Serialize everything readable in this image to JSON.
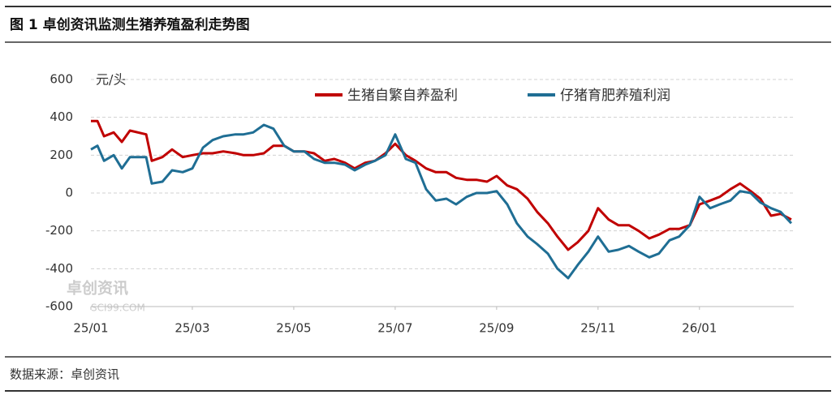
{
  "chart_data": {
    "type": "line",
    "title": "图 1 卓创资讯监测生猪养殖盈利走势图",
    "y_label": "元/头",
    "source": "数据来源：卓创资讯",
    "annotations": [
      "卓创资讯",
      "SCI99.COM"
    ],
    "x": [
      0,
      0.13,
      0.26,
      0.45,
      0.61,
      0.77,
      1.09,
      1.2,
      1.41,
      1.6,
      1.81,
      2,
      2.21,
      2.4,
      2.61,
      2.85,
      3.01,
      3.2,
      3.41,
      3.6,
      3.81,
      4,
      4.21,
      4.4,
      4.61,
      4.8,
      5.01,
      5.2,
      5.41,
      5.6,
      5.81,
      6,
      6.21,
      6.4,
      6.61,
      6.8,
      7.01,
      7.2,
      7.41,
      7.6,
      7.81,
      8,
      8.21,
      8.4,
      8.61,
      8.8,
      9.01,
      9.2,
      9.41,
      9.6,
      9.81,
      10,
      10.21,
      10.4,
      10.61,
      10.8,
      11.01,
      11.2,
      11.41,
      11.6,
      11.81,
      12,
      12.21,
      12.4,
      12.61,
      12.8,
      13.01,
      13.2,
      13.41,
      13.6,
      13.81
    ],
    "series": [
      {
        "name": "生猪自繁自养盈利",
        "color": "#c00000",
        "values": [
          380,
          380,
          300,
          320,
          270,
          330,
          310,
          170,
          190,
          230,
          190,
          200,
          210,
          210,
          220,
          210,
          200,
          200,
          210,
          250,
          250,
          220,
          220,
          210,
          170,
          180,
          160,
          130,
          160,
          170,
          210,
          260,
          200,
          170,
          130,
          110,
          110,
          80,
          70,
          70,
          60,
          90,
          40,
          20,
          -30,
          -100,
          -160,
          -230,
          -300,
          -260,
          -200,
          -80,
          -140,
          -170,
          -170,
          -200,
          -240,
          -220,
          -190,
          -190,
          -170,
          -60,
          -40,
          -20,
          20,
          50,
          10,
          -30,
          -120,
          -110,
          -140
        ]
      },
      {
        "name": "仔猪育肥养殖利润",
        "color": "#1f6e94",
        "values": [
          230,
          250,
          170,
          200,
          130,
          190,
          190,
          50,
          60,
          120,
          110,
          130,
          240,
          280,
          300,
          310,
          310,
          320,
          360,
          340,
          250,
          220,
          220,
          180,
          160,
          160,
          150,
          120,
          150,
          170,
          200,
          310,
          180,
          160,
          20,
          -40,
          -30,
          -60,
          -20,
          0,
          0,
          10,
          -60,
          -160,
          -230,
          -270,
          -320,
          -400,
          -450,
          -380,
          -310,
          -230,
          -310,
          -300,
          -280,
          -310,
          -340,
          -320,
          -250,
          -230,
          -170,
          -20,
          -80,
          -60,
          -40,
          10,
          0,
          -50,
          -80,
          -100,
          -160
        ]
      }
    ],
    "xlim": [
      0,
      13.86
    ],
    "xticks": [
      {
        "value": 0,
        "label": "25/01"
      },
      {
        "value": 2,
        "label": "25/03"
      },
      {
        "value": 4,
        "label": "25/05"
      },
      {
        "value": 6,
        "label": "25/07"
      },
      {
        "value": 8,
        "label": "25/09"
      },
      {
        "value": 10,
        "label": "25/11"
      },
      {
        "value": 12,
        "label": "26/01"
      }
    ],
    "ylim": [
      -600,
      600
    ],
    "yticks": [
      -600,
      -400,
      -200,
      0,
      200,
      400,
      600
    ],
    "grid": true
  }
}
